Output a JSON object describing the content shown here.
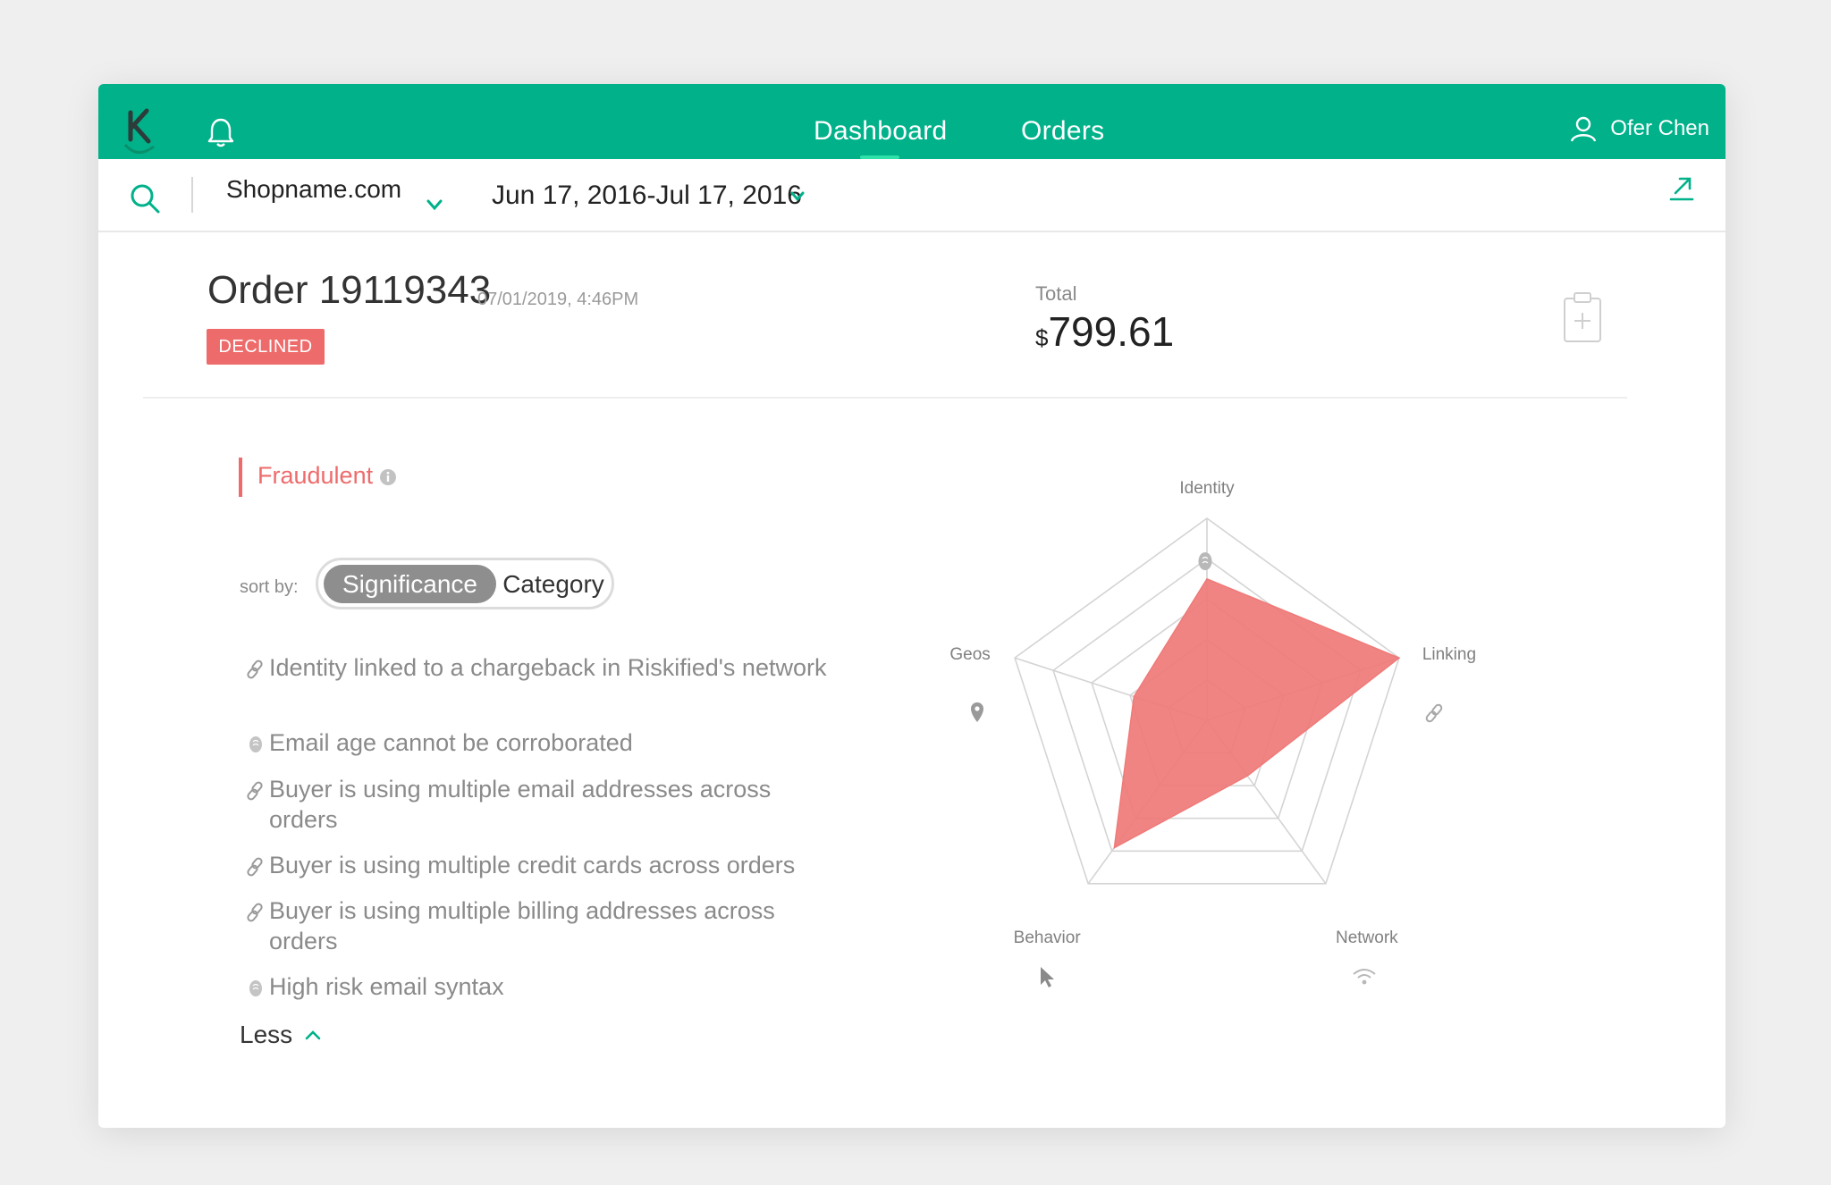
{
  "header": {
    "nav": [
      {
        "label": "Dashboard",
        "active": true
      },
      {
        "label": "Orders",
        "active": false
      }
    ],
    "user_name": "Ofer Chen"
  },
  "filters": {
    "shop": "Shopname.com",
    "date_range": "Jun 17, 2016-Jul 17, 2016"
  },
  "order": {
    "title": "Order 19119343",
    "datetime": "07/01/2019, 4:46PM",
    "status": "DECLINED",
    "total_label": "Total",
    "total_currency": "$",
    "total_amount": "799.61"
  },
  "analysis": {
    "verdict": "Fraudulent",
    "sort_label": "sort by:",
    "sort_options": [
      {
        "label": "Significance",
        "selected": true
      },
      {
        "label": "Category",
        "selected": false
      }
    ],
    "factors": [
      {
        "icon": "link-icon",
        "text": "Identity linked to a chargeback in Riskified's network"
      },
      {
        "icon": "identity-icon",
        "text": "Email age cannot be corroborated"
      },
      {
        "icon": "link-icon",
        "text": "Buyer is using multiple email addresses across orders"
      },
      {
        "icon": "link-icon",
        "text": "Buyer is using multiple credit cards across orders"
      },
      {
        "icon": "link-icon",
        "text": "Buyer is using multiple billing addresses across orders"
      },
      {
        "icon": "identity-icon",
        "text": "High risk email syntax"
      }
    ],
    "less_label": "Less"
  },
  "chart_data": {
    "type": "radar",
    "categories": [
      "Identity",
      "Linking",
      "Network",
      "Behavior",
      "Geos"
    ],
    "values": [
      0.7,
      1.0,
      0.34,
      0.78,
      0.38
    ],
    "rlim": [
      0,
      1
    ],
    "rings": 5,
    "fill_color": "#ef7a78",
    "grid_color": "#d4d4d4"
  },
  "colors": {
    "brand": "#00b18a",
    "danger": "#ee6b6b"
  }
}
